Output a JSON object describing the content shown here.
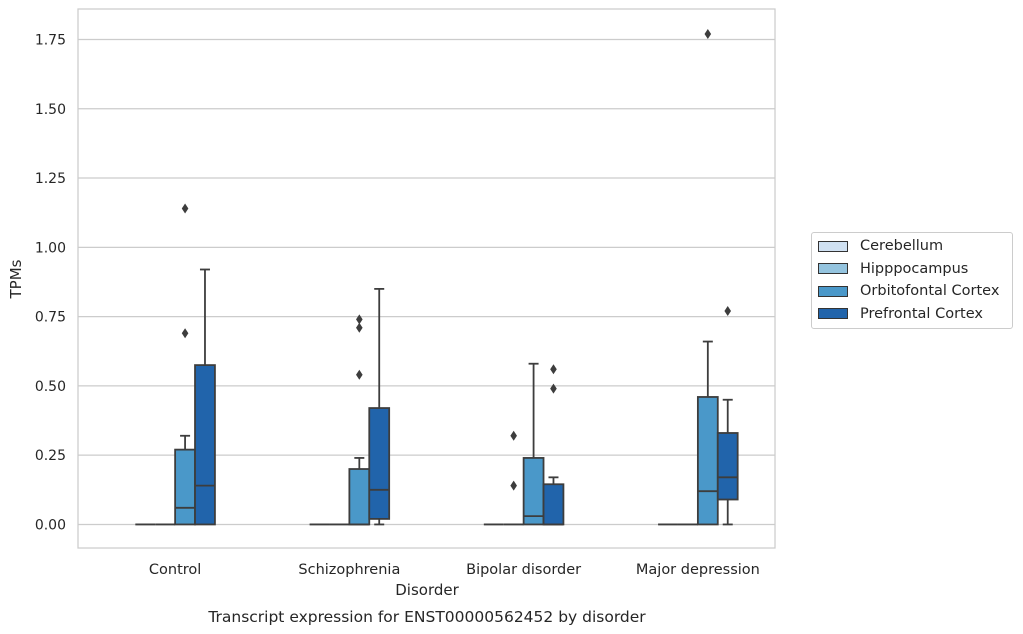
{
  "chart_data": {
    "type": "box",
    "title": "Transcript expression for ENST00000562452 by disorder",
    "xlabel": "Disorder",
    "ylabel": "TPMs",
    "ylim": [
      -0.085,
      1.86
    ],
    "yticks": [
      0.0,
      0.25,
      0.5,
      0.75,
      1.0,
      1.25,
      1.5,
      1.75
    ],
    "ytick_labels": [
      "0.00",
      "0.25",
      "0.50",
      "0.75",
      "1.00",
      "1.25",
      "1.50",
      "1.75"
    ],
    "categories": [
      "Control",
      "Schizophrenia",
      "Bipolar disorder",
      "Major depression"
    ],
    "grid": "horizontal",
    "legend_position": "right",
    "series": [
      {
        "name": "Cerebellum",
        "color": "#d0e1f2",
        "boxes": [
          {
            "q1": 0,
            "median": 0,
            "q3": 0,
            "whisker_low": 0,
            "whisker_high": 0,
            "outliers": []
          },
          {
            "q1": 0,
            "median": 0,
            "q3": 0,
            "whisker_low": 0,
            "whisker_high": 0,
            "outliers": []
          },
          {
            "q1": 0,
            "median": 0,
            "q3": 0,
            "whisker_low": 0,
            "whisker_high": 0,
            "outliers": []
          },
          {
            "q1": 0,
            "median": 0,
            "q3": 0,
            "whisker_low": 0,
            "whisker_high": 0,
            "outliers": []
          }
        ]
      },
      {
        "name": "Hipppocampus",
        "color": "#94c4df",
        "boxes": [
          {
            "q1": 0,
            "median": 0,
            "q3": 0,
            "whisker_low": 0,
            "whisker_high": 0,
            "outliers": []
          },
          {
            "q1": 0,
            "median": 0,
            "q3": 0,
            "whisker_low": 0,
            "whisker_high": 0,
            "outliers": []
          },
          {
            "q1": 0,
            "median": 0,
            "q3": 0,
            "whisker_low": 0,
            "whisker_high": 0,
            "outliers": [
              0.14,
              0.32
            ]
          },
          {
            "q1": 0,
            "median": 0,
            "q3": 0,
            "whisker_low": 0,
            "whisker_high": 0,
            "outliers": []
          }
        ]
      },
      {
        "name": "Orbitofontal Cortex",
        "color": "#4a98c9",
        "boxes": [
          {
            "q1": 0,
            "median": 0.06,
            "q3": 0.27,
            "whisker_low": 0,
            "whisker_high": 0.32,
            "outliers": [
              0.69,
              1.14
            ]
          },
          {
            "q1": 0,
            "median": 0,
            "q3": 0.2,
            "whisker_low": 0,
            "whisker_high": 0.24,
            "outliers": [
              0.54,
              0.71,
              0.74
            ]
          },
          {
            "q1": 0,
            "median": 0.03,
            "q3": 0.24,
            "whisker_low": 0,
            "whisker_high": 0.58,
            "outliers": []
          },
          {
            "q1": 0,
            "median": 0.12,
            "q3": 0.46,
            "whisker_low": 0,
            "whisker_high": 0.66,
            "outliers": [
              1.77
            ]
          }
        ]
      },
      {
        "name": "Prefrontal Cortex",
        "color": "#2164ab",
        "boxes": [
          {
            "q1": 0,
            "median": 0.14,
            "q3": 0.575,
            "whisker_low": 0,
            "whisker_high": 0.92,
            "outliers": []
          },
          {
            "q1": 0.02,
            "median": 0.125,
            "q3": 0.42,
            "whisker_low": 0,
            "whisker_high": 0.85,
            "outliers": []
          },
          {
            "q1": 0,
            "median": 0,
            "q3": 0.145,
            "whisker_low": 0,
            "whisker_high": 0.17,
            "outliers": [
              0.49,
              0.56
            ]
          },
          {
            "q1": 0.09,
            "median": 0.17,
            "q3": 0.33,
            "whisker_low": 0,
            "whisker_high": 0.45,
            "outliers": [
              0.77
            ]
          }
        ]
      }
    ]
  }
}
